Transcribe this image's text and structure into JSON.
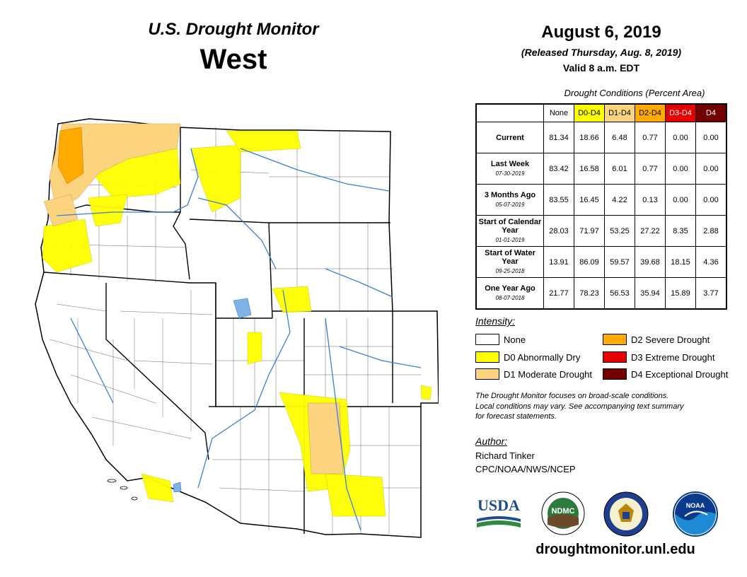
{
  "header": {
    "title": "U.S. Drought Monitor",
    "region": "West",
    "date": "August 6, 2019",
    "released": "(Released Thursday, Aug. 8, 2019)",
    "valid": "Valid 8 a.m. EDT"
  },
  "table": {
    "caption": "Drought Conditions (Percent Area)",
    "columns": [
      "None",
      "D0-D4",
      "D1-D4",
      "D2-D4",
      "D3-D4",
      "D4"
    ],
    "column_colors": [
      "#ffffff",
      "#ffff00",
      "#fcd37f",
      "#ffaa00",
      "#e60000",
      "#730000"
    ],
    "column_text_colors": [
      "#000000",
      "#000000",
      "#000000",
      "#000000",
      "#ffffff",
      "#ffffff"
    ],
    "rows": [
      {
        "label": "Current",
        "date": "",
        "values": [
          "81.34",
          "18.66",
          "6.48",
          "0.77",
          "0.00",
          "0.00"
        ]
      },
      {
        "label": "Last Week",
        "date": "07-30-2019",
        "values": [
          "83.42",
          "16.58",
          "6.01",
          "0.77",
          "0.00",
          "0.00"
        ]
      },
      {
        "label": "3 Months Ago",
        "date": "05-07-2019",
        "values": [
          "83.55",
          "16.45",
          "4.22",
          "0.13",
          "0.00",
          "0.00"
        ]
      },
      {
        "label": "Start of Calendar Year",
        "date": "01-01-2019",
        "values": [
          "28.03",
          "71.97",
          "53.25",
          "27.22",
          "8.35",
          "2.88"
        ]
      },
      {
        "label": "Start of Water Year",
        "date": "09-25-2018",
        "values": [
          "13.91",
          "86.09",
          "59.57",
          "39.68",
          "18.15",
          "4.36"
        ]
      },
      {
        "label": "One Year Ago",
        "date": "08-07-2018",
        "values": [
          "21.77",
          "78.23",
          "56.53",
          "35.94",
          "15.89",
          "3.77"
        ]
      }
    ]
  },
  "legend": {
    "title": "Intensity:",
    "items": [
      {
        "label": "None",
        "color": "#ffffff"
      },
      {
        "label": "D0 Abnormally Dry",
        "color": "#ffff00"
      },
      {
        "label": "D1 Moderate Drought",
        "color": "#fcd37f"
      },
      {
        "label": "D2 Severe Drought",
        "color": "#ffaa00"
      },
      {
        "label": "D3 Extreme Drought",
        "color": "#e60000"
      },
      {
        "label": "D4 Exceptional Drought",
        "color": "#730000"
      }
    ]
  },
  "note": {
    "line1": "The Drought Monitor focuses on broad-scale conditions.",
    "line2": "Local conditions may vary. See accompanying text summary",
    "line3": "for forecast statements."
  },
  "author": {
    "title": "Author:",
    "name": "Richard Tinker",
    "org": "CPC/NOAA/NWS/NCEP"
  },
  "logos": {
    "usda": "USDA",
    "ndmc": "NDMC",
    "doc": "commerce-seal-icon",
    "noaa": "NOAA"
  },
  "footer": {
    "url": "droughtmonitor.unl.edu"
  },
  "map": {
    "base_color": "#ffffff",
    "water_color": "#7fb2e5",
    "river_color": "#3a7fd6"
  }
}
